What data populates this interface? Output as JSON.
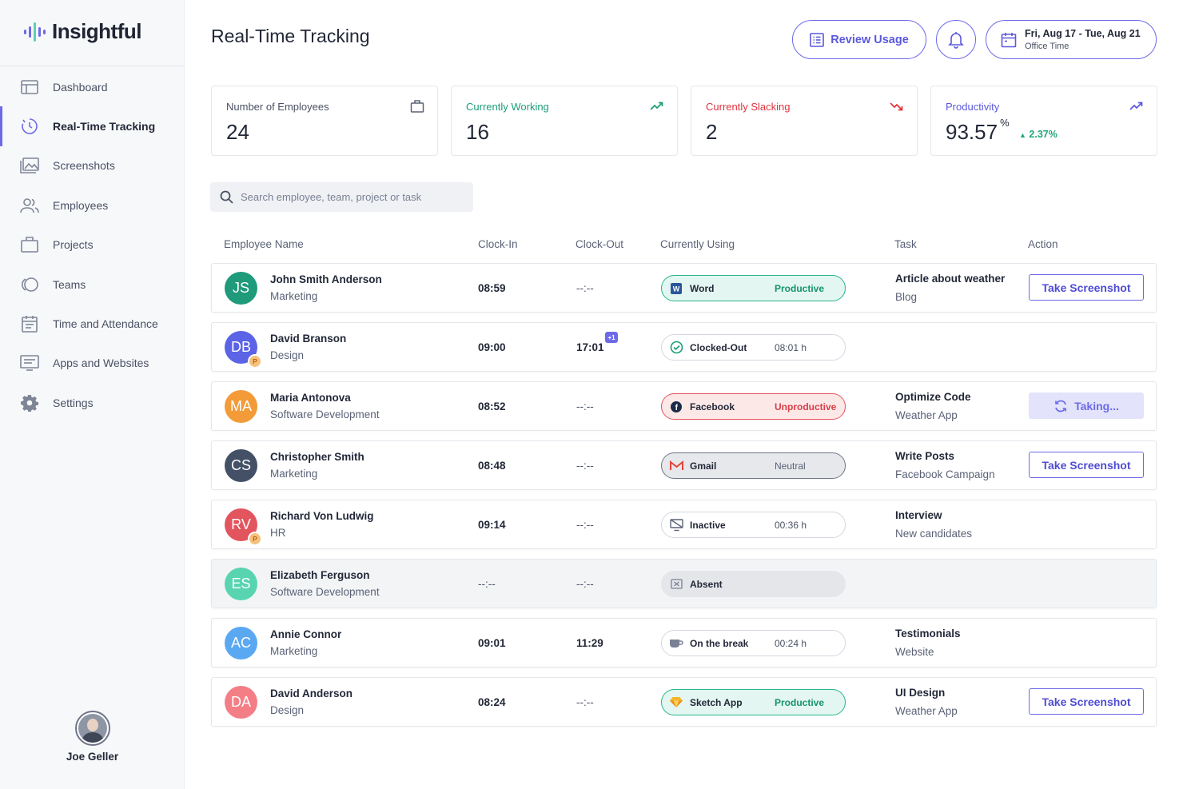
{
  "app": {
    "name": "Insightful"
  },
  "nav": {
    "items": [
      {
        "label": "Dashboard",
        "icon": "dashboard-icon"
      },
      {
        "label": "Real-Time Tracking",
        "icon": "clock-tracking-icon",
        "active": true
      },
      {
        "label": "Screenshots",
        "icon": "screenshots-icon"
      },
      {
        "label": "Employees",
        "icon": "employees-icon"
      },
      {
        "label": "Projects",
        "icon": "briefcase-icon"
      },
      {
        "label": "Teams",
        "icon": "teams-icon"
      },
      {
        "label": "Time and Attendance",
        "icon": "calendar-icon"
      },
      {
        "label": "Apps and Websites",
        "icon": "apps-websites-icon"
      },
      {
        "label": "Settings",
        "icon": "gear-icon"
      }
    ]
  },
  "user": {
    "name": "Joe Geller"
  },
  "header": {
    "title": "Real-Time Tracking",
    "review_label": "Review Usage",
    "date_range": "Fri, Aug 17 - Tue, Aug 21",
    "date_sub": "Office Time"
  },
  "stats": {
    "employees": {
      "label": "Number of Employees",
      "value": "24"
    },
    "working": {
      "label": "Currently Working",
      "value": "16"
    },
    "slacking": {
      "label": "Currently Slacking",
      "value": "2"
    },
    "productivity": {
      "label": "Productivity",
      "value": "93.57",
      "unit": "%",
      "change": "2.37%"
    }
  },
  "search": {
    "placeholder": "Search employee, team, project or task"
  },
  "table": {
    "headers": {
      "name": "Employee Name",
      "clock_in": "Clock-In",
      "clock_out": "Clock-Out",
      "using": "Currently Using",
      "task": "Task",
      "action": "Action"
    },
    "rows": [
      {
        "initials": "JS",
        "name": "John Smith Anderson",
        "dept": "Marketing",
        "in": "08:59",
        "out": "--:--",
        "app": "Word",
        "status": "Productive",
        "task": "Article about weather",
        "task_sub": "Blog",
        "action": "Take Screenshot"
      },
      {
        "initials": "DB",
        "badge": "P",
        "name": "David Branson",
        "dept": "Design",
        "in": "09:00",
        "out": "17:01",
        "out_badge": "+1",
        "app": "Clocked-Out",
        "status": "08:01 h"
      },
      {
        "initials": "MA",
        "name": "Maria Antonova",
        "dept": "Software Development",
        "in": "08:52",
        "out": "--:--",
        "app": "Facebook",
        "status": "Unproductive",
        "task": "Optimize Code",
        "task_sub": "Weather App",
        "action": "Taking..."
      },
      {
        "initials": "CS",
        "name": "Christopher Smith",
        "dept": "Marketing",
        "in": "08:48",
        "out": "--:--",
        "app": "Gmail",
        "status": "Neutral",
        "task": "Write Posts",
        "task_sub": "Facebook Campaign",
        "action": "Take Screenshot"
      },
      {
        "initials": "RV",
        "badge": "P",
        "name": "Richard Von Ludwig",
        "dept": "HR",
        "in": "09:14",
        "out": "--:--",
        "app": "Inactive",
        "status": "00:36 h",
        "task": "Interview",
        "task_sub": "New candidates"
      },
      {
        "initials": "ES",
        "name": "Elizabeth Ferguson",
        "dept": "Software Development",
        "in": "--:--",
        "out": "--:--",
        "app": "Absent"
      },
      {
        "initials": "AC",
        "name": "Annie Connor",
        "dept": "Marketing",
        "in": "09:01",
        "out": "11:29",
        "app": "On the break",
        "status": "00:24 h",
        "task": "Testimonials",
        "task_sub": "Website"
      },
      {
        "initials": "DA",
        "name": "David Anderson",
        "dept": "Design",
        "in": "08:24",
        "out": "--:--",
        "app": "Sketch App",
        "status": "Productive",
        "task": "UI Design",
        "task_sub": "Weather App",
        "action": "Take Screenshot"
      }
    ]
  },
  "colors": {
    "accent": "#6d6ae8",
    "productive": "#27b58a",
    "unproductive": "#e2555e",
    "avatars": [
      "#1f9a7a",
      "#5b63e6",
      "#f29b38",
      "#445066",
      "#e2555e",
      "#58d5b0",
      "#5aa8f2",
      "#f47e86"
    ]
  }
}
